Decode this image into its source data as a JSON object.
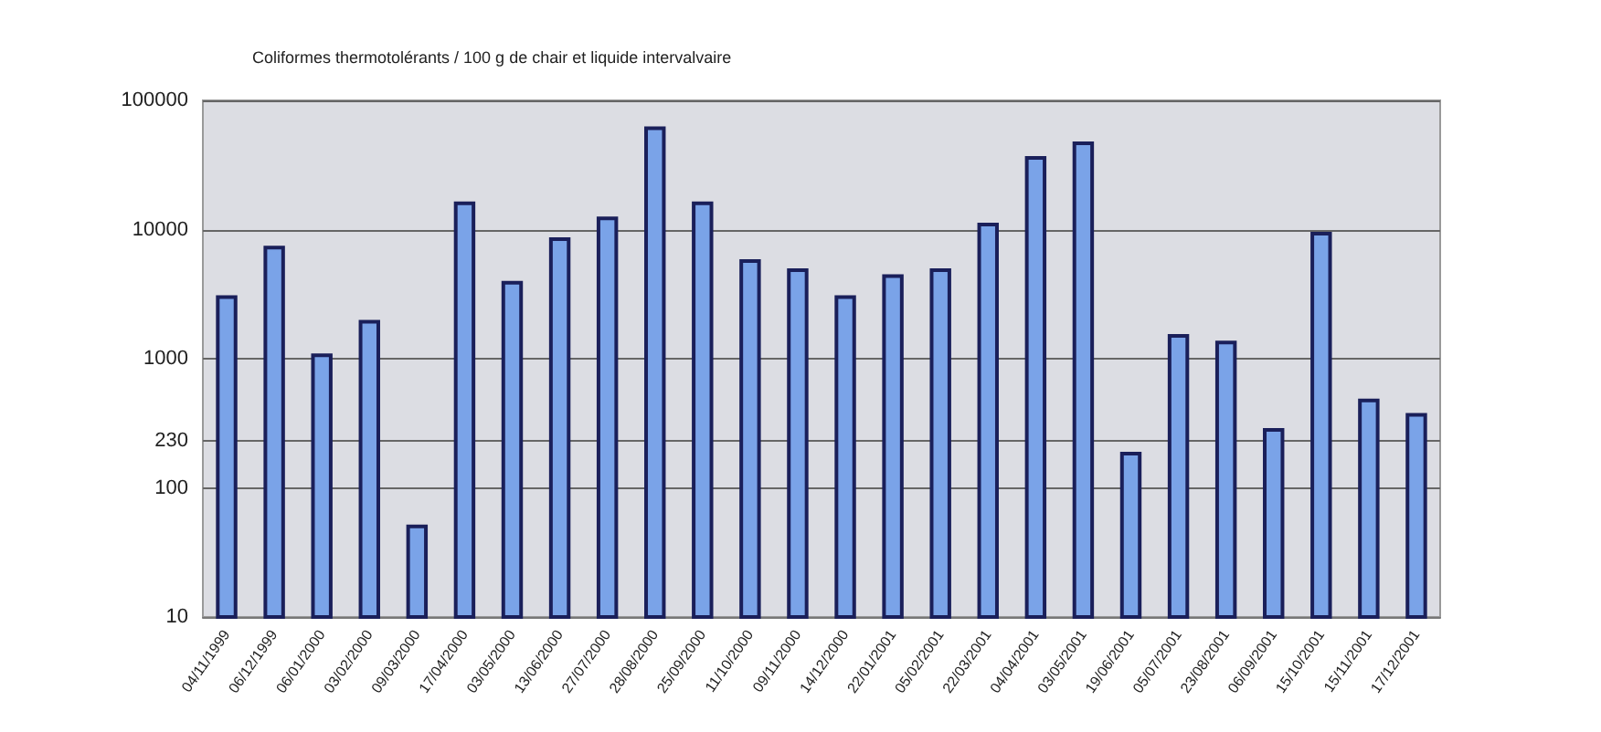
{
  "chart_data": {
    "type": "bar",
    "title": "Coliformes thermotolérants / 100 g de chair et liquide intervalvaire",
    "categories": [
      "04/11/1999",
      "06/12/1999",
      "06/01/2000",
      "03/02/2000",
      "09/03/2000",
      "17/04/2000",
      "03/05/2000",
      "13/06/2000",
      "27/07/2000",
      "28/08/2000",
      "25/09/2000",
      "11/10/2000",
      "09/11/2000",
      "14/12/2000",
      "22/01/2001",
      "05/02/2001",
      "22/03/2001",
      "04/04/2001",
      "03/05/2001",
      "19/06/2001",
      "05/07/2001",
      "23/08/2001",
      "06/09/2001",
      "15/10/2001",
      "15/11/2001",
      "17/12/2001"
    ],
    "values": [
      3100,
      7500,
      1100,
      2000,
      52,
      16500,
      4000,
      8700,
      12600,
      63000,
      16500,
      5900,
      5000,
      3100,
      4500,
      5000,
      11300,
      37000,
      48000,
      190,
      1550,
      1380,
      290,
      9600,
      490,
      380
    ],
    "color": "#7aa3e8",
    "log": true,
    "ylim": [
      10,
      100000
    ],
    "yticks": [
      10,
      100,
      230,
      1000,
      10000,
      100000
    ],
    "grid": "y"
  }
}
